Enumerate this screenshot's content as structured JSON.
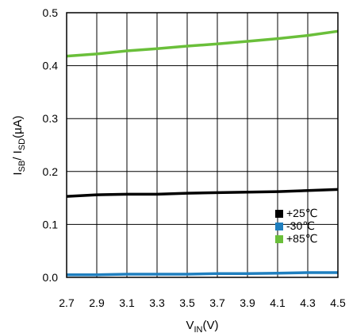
{
  "chart_data": {
    "type": "line",
    "xlabel": "V",
    "xlabel_sub": "IN",
    "xlabel_unit": "(V)",
    "ylabel_parts": [
      {
        "text": "I",
        "sub": false
      },
      {
        "text": "SB",
        "sub": true
      },
      {
        "text": "/ I",
        "sub": false
      },
      {
        "text": "SD",
        "sub": true
      },
      {
        "text": "(µA)",
        "sub": false
      }
    ],
    "x": [
      2.7,
      2.9,
      3.1,
      3.3,
      3.5,
      3.7,
      3.9,
      4.1,
      4.3,
      4.5
    ],
    "xlim": [
      2.7,
      4.5
    ],
    "ylim": [
      0.0,
      0.5
    ],
    "xticks": [
      "2.7",
      "2.9",
      "3.1",
      "3.3",
      "3.5",
      "3.7",
      "3.9",
      "4.1",
      "4.3",
      "4.5"
    ],
    "yticks": [
      "0.0",
      "0.1",
      "0.2",
      "0.3",
      "0.4",
      "0.5"
    ],
    "grid": true,
    "legend_position": "bottom-right",
    "series": [
      {
        "name": "+25℃",
        "color": "#000000",
        "values": [
          0.153,
          0.156,
          0.157,
          0.157,
          0.159,
          0.16,
          0.161,
          0.162,
          0.164,
          0.166
        ]
      },
      {
        "name": "-30℃",
        "color": "#1f7fbf",
        "values": [
          0.005,
          0.005,
          0.006,
          0.006,
          0.006,
          0.007,
          0.007,
          0.008,
          0.009,
          0.009
        ]
      },
      {
        "name": "+85℃",
        "color": "#6abf3a",
        "values": [
          0.418,
          0.422,
          0.428,
          0.432,
          0.437,
          0.441,
          0.446,
          0.451,
          0.457,
          0.465
        ]
      }
    ]
  }
}
